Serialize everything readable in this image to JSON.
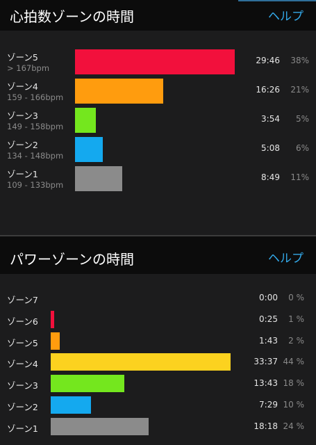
{
  "heart_rate": {
    "title": "心拍数ゾーンの時間",
    "help_label": "ヘルプ"
  },
  "power": {
    "title": "パワーゾーンの時間",
    "help_label": "ヘルプ"
  },
  "chart_data": [
    {
      "type": "bar",
      "orientation": "horizontal",
      "title": "心拍数ゾーンの時間",
      "categories": [
        "ゾーン5",
        "ゾーン4",
        "ゾーン3",
        "ゾーン2",
        "ゾーン1"
      ],
      "ranges": [
        "> 167bpm",
        "159 - 166bpm",
        "149 - 158bpm",
        "134 - 148bpm",
        "109 - 133bpm"
      ],
      "times": [
        "29:46",
        "16:26",
        "3:54",
        "5:08",
        "8:49"
      ],
      "percent_labels": [
        "38%",
        "21%",
        "5%",
        "6%",
        "11%"
      ],
      "values": [
        1786,
        986,
        234,
        308,
        529
      ],
      "colors": [
        "#f2103c",
        "#ff9c0e",
        "#74e71e",
        "#14a9ef",
        "#8b8b8b"
      ]
    },
    {
      "type": "bar",
      "orientation": "horizontal",
      "title": "パワーゾーンの時間",
      "categories": [
        "ゾーン7",
        "ゾーン6",
        "ゾーン5",
        "ゾーン4",
        "ゾーン3",
        "ゾーン2",
        "ゾーン1"
      ],
      "times": [
        "0:00",
        "0:25",
        "1:43",
        "33:37",
        "13:43",
        "7:29",
        "18:18"
      ],
      "percent_labels": [
        "0 %",
        "1 %",
        "2 %",
        "44 %",
        "18 %",
        "10 %",
        "24 %"
      ],
      "values": [
        0,
        25,
        103,
        2017,
        823,
        449,
        1098
      ],
      "colors": [
        "#c0c0c0",
        "#f2103c",
        "#ff9c0e",
        "#fcd21f",
        "#74e71e",
        "#14a9ef",
        "#8b8b8b"
      ]
    }
  ]
}
